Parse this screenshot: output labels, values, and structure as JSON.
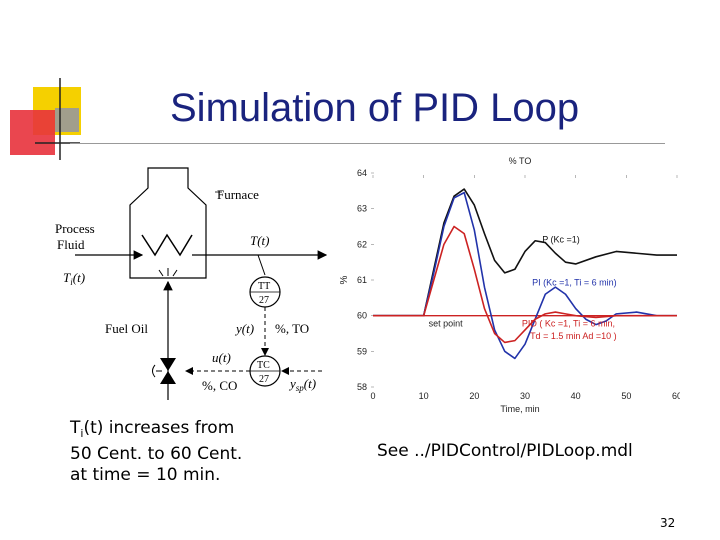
{
  "slide": {
    "title": "Simulation of PID Loop",
    "caption_line1_pre": "T",
    "caption_line1_sub": "i",
    "caption_line1_post": "(t)  increases from",
    "caption_line2": "50 Cent. to 60 Cent.",
    "caption_line3": "at time = 10 min.",
    "see_text": "See ../PIDControl/PIDLoop.mdl",
    "page_number": "32",
    "accent_colors": {
      "yellow": "#f5d000",
      "red": "#e8323c",
      "title": "#1a237e"
    }
  },
  "diagram": {
    "furnace": "Furnace",
    "process_fluid_1": "Process",
    "process_fluid_2": "Fluid",
    "ti_label": "T",
    "ti_sub": "i",
    "ti_suffix": "(t)",
    "t_label": "T(t)",
    "tt": "TT",
    "tt_num": "27",
    "fuel_oil": "Fuel Oil",
    "y_label": "y(t)",
    "to_label": "%, TO",
    "u_label": "u(t)",
    "co_label": "%, CO",
    "tc": "TC",
    "tc_num": "27",
    "ysp_label": "y",
    "ysp_sub": "sp",
    "ysp_suffix": "(t)"
  },
  "chart_data": {
    "type": "line",
    "title": "% TO",
    "xlabel": "Time, min",
    "ylabel": "%",
    "xlim": [
      0,
      60
    ],
    "ylim": [
      58,
      64
    ],
    "x_ticks": [
      0,
      10,
      20,
      30,
      40,
      50,
      60
    ],
    "y_ticks": [
      58,
      59,
      60,
      61,
      62,
      63,
      64
    ],
    "setpoint_label": "set point",
    "series": [
      {
        "name": "P (Kc =1)",
        "color": "#111111",
        "x": [
          0,
          10,
          12,
          14,
          16,
          18,
          20,
          22,
          24,
          26,
          28,
          30,
          32,
          34,
          36,
          38,
          40,
          44,
          48,
          52,
          56,
          60
        ],
        "y": [
          60,
          60,
          61.3,
          62.6,
          63.35,
          63.55,
          63.1,
          62.3,
          61.55,
          61.2,
          61.3,
          61.8,
          62.1,
          62.05,
          61.75,
          61.5,
          61.45,
          61.65,
          61.8,
          61.75,
          61.7,
          61.7
        ]
      },
      {
        "name": "PI (Kc =1, Ti = 6 min)",
        "color": "#2233aa",
        "x": [
          0,
          10,
          12,
          14,
          16,
          18,
          20,
          22,
          24,
          26,
          28,
          30,
          32,
          34,
          36,
          38,
          40,
          42,
          44,
          46,
          48,
          52,
          56,
          60
        ],
        "y": [
          60,
          60,
          61.2,
          62.5,
          63.3,
          63.45,
          62.4,
          60.8,
          59.6,
          59.0,
          58.8,
          59.2,
          59.9,
          60.6,
          60.8,
          60.6,
          60.2,
          59.9,
          59.75,
          59.85,
          60.05,
          60.1,
          60.0,
          60.0
        ]
      },
      {
        "name": "PID ( Kc =1, Ti = 6 min,",
        "name_line2": "Td = 1.5 min  Ad =10 )",
        "color": "#cc2222",
        "x": [
          0,
          10,
          12,
          14,
          16,
          18,
          20,
          22,
          24,
          26,
          28,
          30,
          32,
          34,
          36,
          38,
          40,
          44,
          48,
          52,
          56,
          60
        ],
        "y": [
          60,
          60,
          61.0,
          62.0,
          62.5,
          62.3,
          61.3,
          60.2,
          59.5,
          59.25,
          59.3,
          59.6,
          59.9,
          60.05,
          60.1,
          60.05,
          60.0,
          59.95,
          60.0,
          60.0,
          60.0,
          60.0
        ]
      }
    ],
    "setpoint": {
      "x": [
        0,
        60
      ],
      "y": [
        60,
        60
      ],
      "color": "#cc2222"
    }
  }
}
